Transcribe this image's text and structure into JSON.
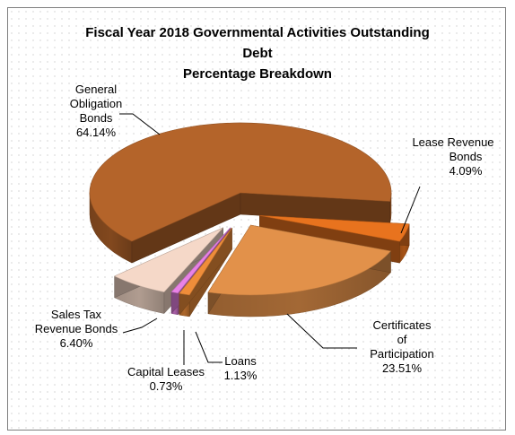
{
  "chart_data": {
    "type": "pie",
    "title_lines": [
      "Fiscal Year 2018 Governmental  Activities  Outstanding",
      "Debt",
      "Percentage Breakdown"
    ],
    "slices": [
      {
        "label_lines": [
          "General",
          "Obligation",
          "Bonds"
        ],
        "value": 64.14,
        "value_label": "64.14%",
        "color": "#b4642a"
      },
      {
        "label_lines": [
          "Lease Revenue",
          "Bonds"
        ],
        "value": 4.09,
        "value_label": "4.09%",
        "color": "#e8731e"
      },
      {
        "label_lines": [
          "Certificates",
          "of",
          "Participation"
        ],
        "value": 23.51,
        "value_label": "23.51%",
        "color": "#e2914a"
      },
      {
        "label_lines": [
          "Loans"
        ],
        "value": 1.13,
        "value_label": "1.13%",
        "color": "#ef8d3a"
      },
      {
        "label_lines": [
          "Capital Leases"
        ],
        "value": 0.73,
        "value_label": "0.73%",
        "color": "#e982e6"
      },
      {
        "label_lines": [
          "Sales Tax",
          "Revenue Bonds"
        ],
        "value": 6.4,
        "value_label": "6.40%",
        "color": "#f5d8c8"
      }
    ],
    "style": "3d-exploded-pie"
  }
}
